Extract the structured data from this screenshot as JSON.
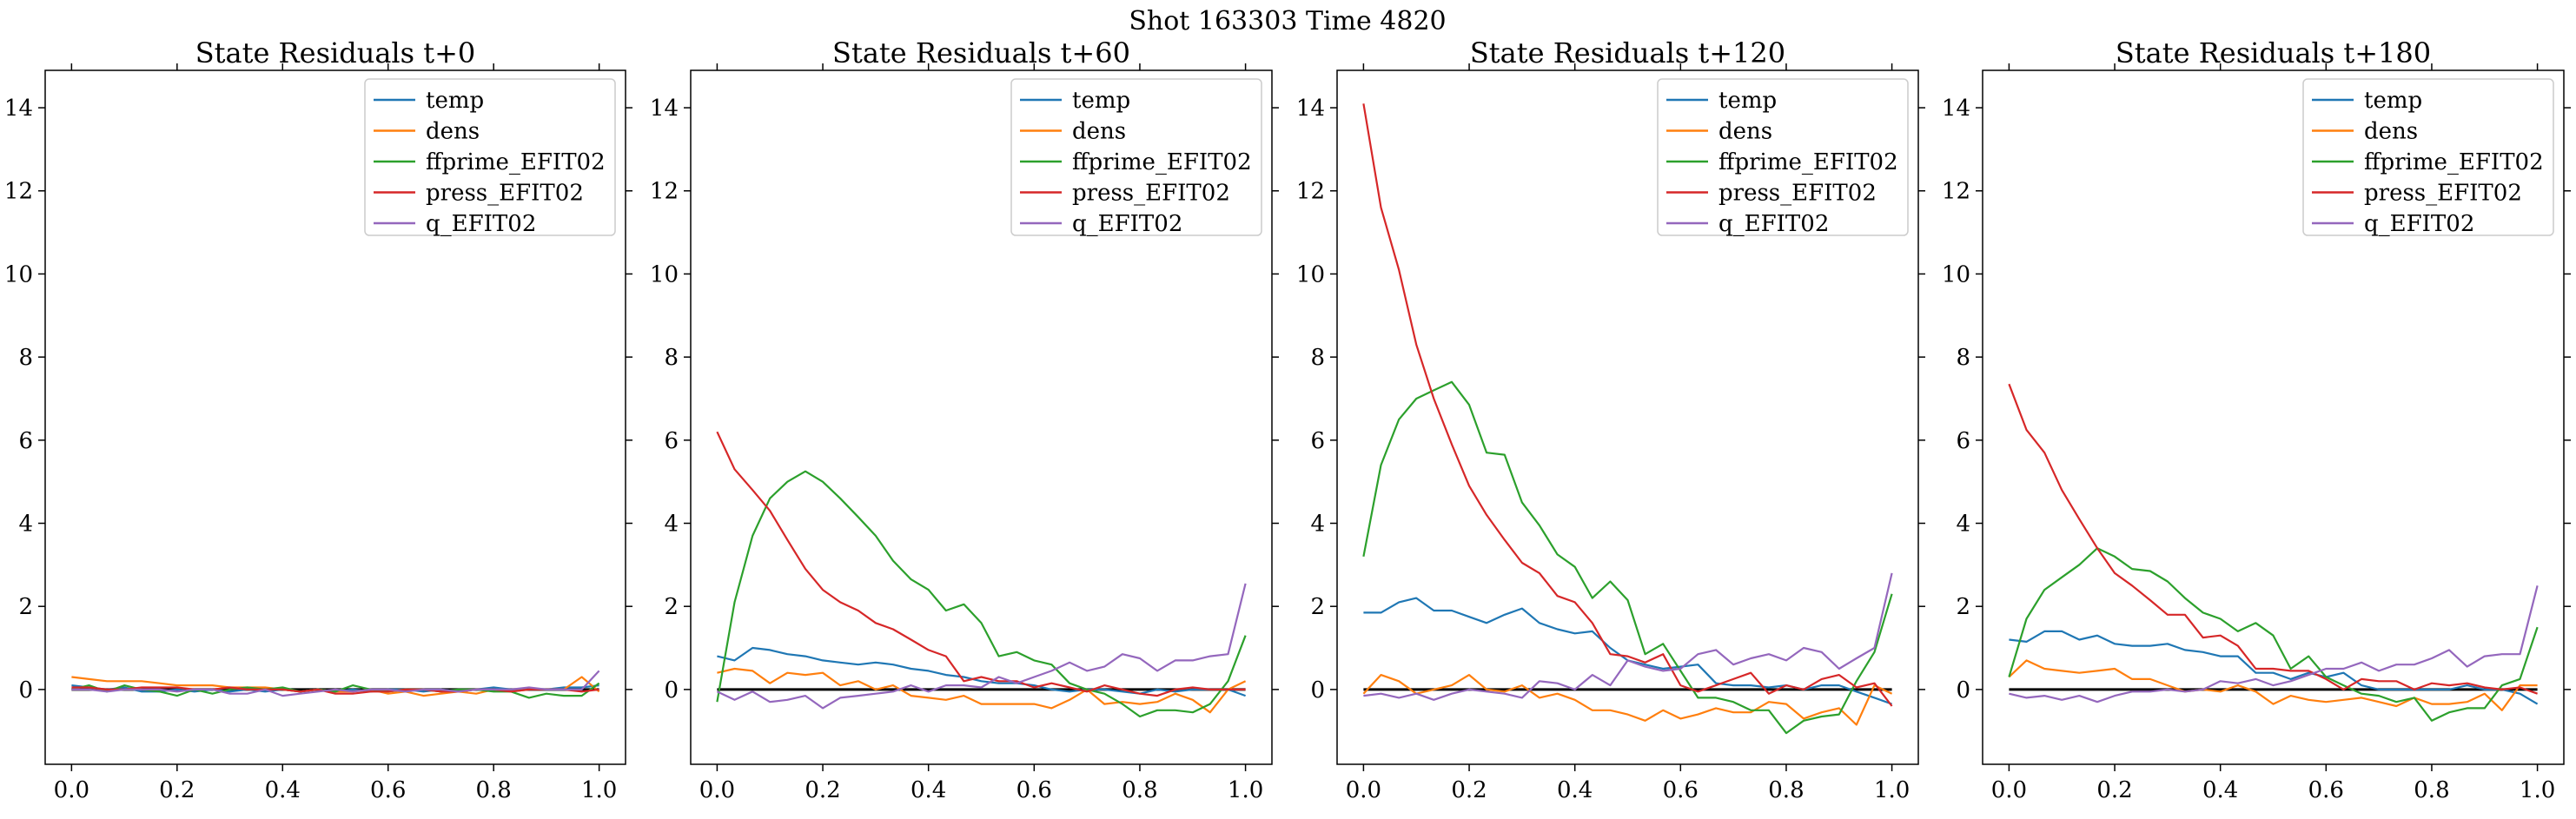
{
  "figure": {
    "suptitle": "Shot 163303   Time 4820"
  },
  "legend_entries": [
    "temp",
    "dens",
    "ffprime_EFIT02",
    "press_EFIT02",
    "q_EFIT02"
  ],
  "colors": {
    "temp": "#1f77b4",
    "dens": "#ff7f0e",
    "ffprime_EFIT02": "#2ca02c",
    "press_EFIT02": "#d62728",
    "q_EFIT02": "#9467bd",
    "zero_line": "#000000"
  },
  "chart_data": [
    {
      "type": "line",
      "title": "State Residuals t+0",
      "xlabel": "",
      "ylabel": "",
      "xlim": [
        -0.05,
        1.05
      ],
      "ylim": [
        -1.8,
        14.9
      ],
      "xticks": [
        "0.0",
        "0.2",
        "0.4",
        "0.6",
        "0.8",
        "1.0"
      ],
      "yticks": [
        "0",
        "2",
        "4",
        "6",
        "8",
        "10",
        "12",
        "14"
      ],
      "legend_position": "top-right",
      "grid": false,
      "x": [
        0.0,
        0.033,
        0.067,
        0.1,
        0.133,
        0.167,
        0.2,
        0.233,
        0.267,
        0.3,
        0.333,
        0.367,
        0.4,
        0.433,
        0.467,
        0.5,
        0.533,
        0.567,
        0.6,
        0.633,
        0.667,
        0.7,
        0.733,
        0.767,
        0.8,
        0.833,
        0.867,
        0.9,
        0.933,
        0.967,
        1.0
      ],
      "series": [
        {
          "name": "temp",
          "values": [
            0.1,
            0.05,
            0.0,
            0.05,
            -0.05,
            -0.05,
            0.0,
            -0.05,
            0.0,
            -0.05,
            0.0,
            -0.05,
            0.0,
            -0.05,
            0.0,
            -0.05,
            0.0,
            -0.05,
            0.0,
            0.0,
            -0.05,
            0.0,
            -0.05,
            0.0,
            0.05,
            0.0,
            0.0,
            0.0,
            0.05,
            0.05,
            0.1
          ]
        },
        {
          "name": "dens",
          "values": [
            0.3,
            0.25,
            0.2,
            0.2,
            0.2,
            0.15,
            0.1,
            0.1,
            0.1,
            0.05,
            0.05,
            0.05,
            0.0,
            -0.05,
            0.0,
            -0.05,
            -0.05,
            0.0,
            -0.1,
            -0.05,
            -0.15,
            -0.1,
            -0.05,
            -0.1,
            0.0,
            -0.05,
            0.0,
            0.0,
            0.0,
            0.3,
            -0.05
          ]
        },
        {
          "name": "ffprime_EFIT02",
          "values": [
            0.0,
            0.1,
            -0.05,
            0.1,
            0.0,
            -0.05,
            -0.15,
            0.0,
            -0.1,
            0.0,
            0.05,
            0.0,
            0.05,
            -0.05,
            0.0,
            -0.05,
            0.1,
            0.0,
            -0.05,
            0.0,
            0.0,
            -0.05,
            0.0,
            0.0,
            -0.05,
            -0.05,
            -0.2,
            -0.1,
            -0.15,
            -0.15,
            0.15
          ]
        },
        {
          "name": "press_EFIT02",
          "values": [
            0.05,
            0.05,
            0.0,
            0.0,
            0.05,
            0.05,
            0.05,
            0.0,
            0.0,
            0.05,
            0.0,
            0.0,
            0.0,
            -0.05,
            0.0,
            -0.1,
            -0.1,
            -0.05,
            -0.05,
            0.0,
            0.0,
            -0.05,
            -0.05,
            0.0,
            0.0,
            -0.05,
            0.0,
            0.0,
            0.0,
            -0.05,
            0.0
          ]
        },
        {
          "name": "q_EFIT02",
          "values": [
            0.0,
            0.0,
            -0.05,
            0.0,
            0.0,
            0.0,
            -0.05,
            0.0,
            0.0,
            -0.1,
            -0.1,
            0.0,
            -0.15,
            -0.1,
            -0.05,
            0.0,
            -0.05,
            0.0,
            0.0,
            -0.05,
            0.0,
            0.0,
            -0.05,
            0.0,
            0.0,
            0.0,
            0.05,
            0.0,
            0.0,
            0.0,
            0.45
          ]
        }
      ]
    },
    {
      "type": "line",
      "title": "State Residuals t+60",
      "xlabel": "",
      "ylabel": "",
      "xlim": [
        -0.05,
        1.05
      ],
      "ylim": [
        -1.8,
        14.9
      ],
      "xticks": [
        "0.0",
        "0.2",
        "0.4",
        "0.6",
        "0.8",
        "1.0"
      ],
      "yticks": [
        "0",
        "2",
        "4",
        "6",
        "8",
        "10",
        "12",
        "14"
      ],
      "legend_position": "top-right",
      "grid": false,
      "x": [
        0.0,
        0.033,
        0.067,
        0.1,
        0.133,
        0.167,
        0.2,
        0.233,
        0.267,
        0.3,
        0.333,
        0.367,
        0.4,
        0.433,
        0.467,
        0.5,
        0.533,
        0.567,
        0.6,
        0.633,
        0.667,
        0.7,
        0.733,
        0.767,
        0.8,
        0.833,
        0.867,
        0.9,
        0.933,
        0.967,
        1.0
      ],
      "series": [
        {
          "name": "temp",
          "values": [
            0.8,
            0.7,
            1.0,
            0.95,
            0.85,
            0.8,
            0.7,
            0.65,
            0.6,
            0.65,
            0.6,
            0.5,
            0.45,
            0.35,
            0.3,
            0.2,
            0.15,
            0.15,
            0.1,
            0.0,
            -0.05,
            0.0,
            0.0,
            -0.05,
            -0.1,
            0.0,
            -0.05,
            0.0,
            0.0,
            0.0,
            -0.15
          ]
        },
        {
          "name": "dens",
          "values": [
            0.4,
            0.5,
            0.45,
            0.15,
            0.4,
            0.35,
            0.4,
            0.1,
            0.2,
            0.0,
            0.1,
            -0.15,
            -0.2,
            -0.25,
            -0.15,
            -0.35,
            -0.35,
            -0.35,
            -0.35,
            -0.45,
            -0.25,
            0.0,
            -0.35,
            -0.3,
            -0.35,
            -0.3,
            -0.1,
            -0.25,
            -0.55,
            0.0,
            0.2
          ]
        },
        {
          "name": "ffprime_EFIT02",
          "values": [
            -0.3,
            2.1,
            3.7,
            4.6,
            5.0,
            5.25,
            5.0,
            4.6,
            4.15,
            3.7,
            3.1,
            2.65,
            2.4,
            1.9,
            2.05,
            1.6,
            0.8,
            0.9,
            0.7,
            0.6,
            0.15,
            0.0,
            -0.1,
            -0.35,
            -0.65,
            -0.5,
            -0.5,
            -0.55,
            -0.35,
            0.2,
            1.3
          ]
        },
        {
          "name": "press_EFIT02",
          "values": [
            6.2,
            5.3,
            4.8,
            4.3,
            3.6,
            2.9,
            2.4,
            2.1,
            1.9,
            1.6,
            1.45,
            1.2,
            0.95,
            0.8,
            0.2,
            0.3,
            0.2,
            0.2,
            0.05,
            0.15,
            0.05,
            -0.05,
            0.1,
            0.0,
            -0.1,
            -0.15,
            0.0,
            0.05,
            0.0,
            0.0,
            0.0
          ]
        },
        {
          "name": "q_EFIT02",
          "values": [
            -0.05,
            -0.25,
            -0.05,
            -0.3,
            -0.25,
            -0.15,
            -0.45,
            -0.2,
            -0.15,
            -0.1,
            -0.05,
            0.1,
            -0.05,
            0.1,
            0.1,
            0.05,
            0.3,
            0.15,
            0.3,
            0.45,
            0.65,
            0.45,
            0.55,
            0.85,
            0.75,
            0.45,
            0.7,
            0.7,
            0.8,
            0.85,
            2.55
          ]
        }
      ]
    },
    {
      "type": "line",
      "title": "State Residuals t+120",
      "xlabel": "",
      "ylabel": "",
      "xlim": [
        -0.05,
        1.05
      ],
      "ylim": [
        -1.8,
        14.9
      ],
      "xticks": [
        "0.0",
        "0.2",
        "0.4",
        "0.6",
        "0.8",
        "1.0"
      ],
      "yticks": [
        "0",
        "2",
        "4",
        "6",
        "8",
        "10",
        "12",
        "14"
      ],
      "legend_position": "top-right",
      "grid": false,
      "x": [
        0.0,
        0.033,
        0.067,
        0.1,
        0.133,
        0.167,
        0.2,
        0.233,
        0.267,
        0.3,
        0.333,
        0.367,
        0.4,
        0.433,
        0.467,
        0.5,
        0.533,
        0.567,
        0.6,
        0.633,
        0.667,
        0.7,
        0.733,
        0.767,
        0.8,
        0.833,
        0.867,
        0.9,
        0.933,
        0.967,
        1.0
      ],
      "series": [
        {
          "name": "temp",
          "values": [
            1.85,
            1.85,
            2.1,
            2.2,
            1.9,
            1.9,
            1.75,
            1.6,
            1.8,
            1.95,
            1.6,
            1.45,
            1.35,
            1.4,
            1.0,
            0.7,
            0.6,
            0.5,
            0.55,
            0.6,
            0.15,
            0.1,
            0.1,
            0.05,
            0.1,
            0.0,
            0.1,
            0.1,
            -0.05,
            -0.2,
            -0.35
          ]
        },
        {
          "name": "dens",
          "values": [
            -0.1,
            0.35,
            0.2,
            -0.1,
            0.0,
            0.1,
            0.35,
            0.0,
            -0.05,
            0.1,
            -0.2,
            -0.1,
            -0.25,
            -0.5,
            -0.5,
            -0.6,
            -0.75,
            -0.5,
            -0.7,
            -0.6,
            -0.45,
            -0.55,
            -0.55,
            -0.3,
            -0.35,
            -0.7,
            -0.55,
            -0.45,
            -0.85,
            0.1,
            -0.1
          ]
        },
        {
          "name": "ffprime_EFIT02",
          "values": [
            3.2,
            5.4,
            6.5,
            7.0,
            7.2,
            7.4,
            6.85,
            5.7,
            5.65,
            4.5,
            3.95,
            3.25,
            2.95,
            2.2,
            2.6,
            2.15,
            0.85,
            1.1,
            0.45,
            -0.2,
            -0.2,
            -0.3,
            -0.5,
            -0.5,
            -1.05,
            -0.75,
            -0.65,
            -0.6,
            0.2,
            0.9,
            2.3
          ]
        },
        {
          "name": "press_EFIT02",
          "values": [
            14.1,
            11.6,
            10.1,
            8.3,
            7.0,
            5.9,
            4.9,
            4.2,
            3.6,
            3.05,
            2.8,
            2.25,
            2.1,
            1.6,
            0.85,
            0.8,
            0.65,
            0.85,
            0.1,
            -0.05,
            0.1,
            0.25,
            0.4,
            -0.1,
            0.1,
            0.0,
            0.25,
            0.35,
            0.05,
            0.15,
            -0.4
          ]
        },
        {
          "name": "q_EFIT02",
          "values": [
            -0.15,
            -0.1,
            -0.2,
            -0.1,
            -0.25,
            -0.1,
            0.0,
            -0.05,
            -0.1,
            -0.2,
            0.2,
            0.15,
            0.0,
            0.35,
            0.1,
            0.7,
            0.55,
            0.45,
            0.5,
            0.85,
            0.95,
            0.6,
            0.75,
            0.85,
            0.7,
            1.0,
            0.9,
            0.5,
            0.75,
            1.0,
            2.8
          ]
        }
      ]
    },
    {
      "type": "line",
      "title": "State Residuals t+180",
      "xlabel": "",
      "ylabel": "",
      "xlim": [
        -0.05,
        1.05
      ],
      "ylim": [
        -1.8,
        14.9
      ],
      "xticks": [
        "0.0",
        "0.2",
        "0.4",
        "0.6",
        "0.8",
        "1.0"
      ],
      "yticks": [
        "0",
        "2",
        "4",
        "6",
        "8",
        "10",
        "12",
        "14"
      ],
      "legend_position": "top-right",
      "grid": false,
      "x": [
        0.0,
        0.033,
        0.067,
        0.1,
        0.133,
        0.167,
        0.2,
        0.233,
        0.267,
        0.3,
        0.333,
        0.367,
        0.4,
        0.433,
        0.467,
        0.5,
        0.533,
        0.567,
        0.6,
        0.633,
        0.667,
        0.7,
        0.733,
        0.767,
        0.8,
        0.833,
        0.867,
        0.9,
        0.933,
        0.967,
        1.0
      ],
      "series": [
        {
          "name": "temp",
          "values": [
            1.2,
            1.15,
            1.4,
            1.4,
            1.2,
            1.3,
            1.1,
            1.05,
            1.05,
            1.1,
            0.95,
            0.9,
            0.8,
            0.8,
            0.4,
            0.4,
            0.25,
            0.4,
            0.3,
            0.4,
            0.1,
            0.0,
            0.0,
            0.0,
            0.0,
            0.0,
            0.1,
            0.0,
            0.0,
            -0.1,
            -0.35
          ]
        },
        {
          "name": "dens",
          "values": [
            0.3,
            0.7,
            0.5,
            0.45,
            0.4,
            0.45,
            0.5,
            0.25,
            0.25,
            0.1,
            -0.05,
            0.0,
            -0.05,
            0.1,
            -0.05,
            -0.35,
            -0.15,
            -0.25,
            -0.3,
            -0.25,
            -0.2,
            -0.3,
            -0.4,
            -0.2,
            -0.35,
            -0.35,
            -0.3,
            -0.1,
            -0.5,
            0.1,
            0.1
          ]
        },
        {
          "name": "ffprime_EFIT02",
          "values": [
            0.3,
            1.7,
            2.4,
            2.7,
            3.0,
            3.4,
            3.2,
            2.9,
            2.85,
            2.6,
            2.2,
            1.85,
            1.7,
            1.4,
            1.6,
            1.3,
            0.5,
            0.8,
            0.3,
            0.1,
            -0.1,
            -0.15,
            -0.3,
            -0.2,
            -0.75,
            -0.55,
            -0.45,
            -0.45,
            0.1,
            0.25,
            1.5
          ]
        },
        {
          "name": "press_EFIT02",
          "values": [
            7.35,
            6.25,
            5.7,
            4.8,
            4.1,
            3.4,
            2.8,
            2.5,
            2.15,
            1.8,
            1.8,
            1.25,
            1.3,
            1.05,
            0.5,
            0.5,
            0.45,
            0.45,
            0.25,
            0.0,
            0.25,
            0.2,
            0.2,
            0.0,
            0.15,
            0.1,
            0.15,
            0.05,
            0.0,
            0.05,
            -0.1
          ]
        },
        {
          "name": "q_EFIT02",
          "values": [
            -0.1,
            -0.2,
            -0.15,
            -0.25,
            -0.15,
            -0.3,
            -0.15,
            -0.05,
            -0.05,
            0.0,
            -0.05,
            0.0,
            0.2,
            0.15,
            0.25,
            0.1,
            0.2,
            0.35,
            0.5,
            0.5,
            0.65,
            0.45,
            0.6,
            0.6,
            0.75,
            0.95,
            0.55,
            0.8,
            0.85,
            0.85,
            2.5
          ]
        }
      ]
    }
  ]
}
